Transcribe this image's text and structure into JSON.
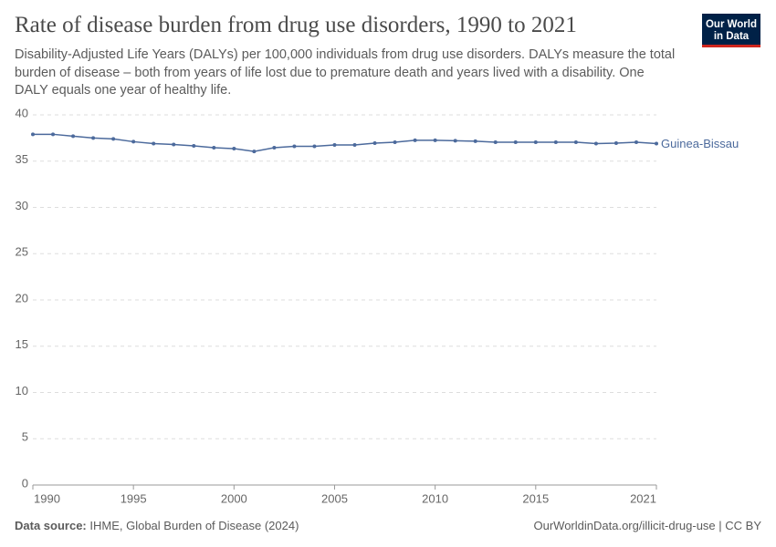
{
  "chart_data": {
    "type": "line",
    "title": "Rate of disease burden from drug use disorders, 1990 to 2021",
    "subtitle": "Disability-Adjusted Life Years (DALYs) per 100,000 individuals from drug use disorders. DALYs measure the total burden of disease – both from years of life lost due to premature death and years lived with a disability. One DALY equals one year of healthy life.",
    "x": [
      1990,
      1991,
      1992,
      1993,
      1994,
      1995,
      1996,
      1997,
      1998,
      1999,
      2000,
      2001,
      2002,
      2003,
      2004,
      2005,
      2006,
      2007,
      2008,
      2009,
      2010,
      2011,
      2012,
      2013,
      2014,
      2015,
      2016,
      2017,
      2018,
      2019,
      2020,
      2021
    ],
    "series": [
      {
        "name": "Guinea-Bissau",
        "color": "#4c6a9c",
        "values": [
          37.9,
          37.9,
          37.7,
          37.5,
          37.4,
          37.1,
          36.9,
          36.8,
          36.65,
          36.45,
          36.35,
          36.05,
          36.45,
          36.6,
          36.6,
          36.75,
          36.75,
          36.95,
          37.05,
          37.25,
          37.25,
          37.2,
          37.15,
          37.05,
          37.05,
          37.05,
          37.05,
          37.05,
          36.9,
          36.95,
          37.05,
          36.9
        ]
      }
    ],
    "xlim": [
      1990,
      2021
    ],
    "xticks": [
      1990,
      1995,
      2000,
      2005,
      2010,
      2015,
      2021
    ],
    "ylim": [
      0,
      40
    ],
    "yticks": [
      0,
      5,
      10,
      15,
      20,
      25,
      30,
      35,
      40
    ],
    "grid": true
  },
  "logo": {
    "line1": "Our World",
    "line2": "in Data"
  },
  "footer": {
    "source_label": "Data source:",
    "source": "IHME, Global Burden of Disease (2024)",
    "url": "OurWorldinData.org/illicit-drug-use | CC BY"
  }
}
